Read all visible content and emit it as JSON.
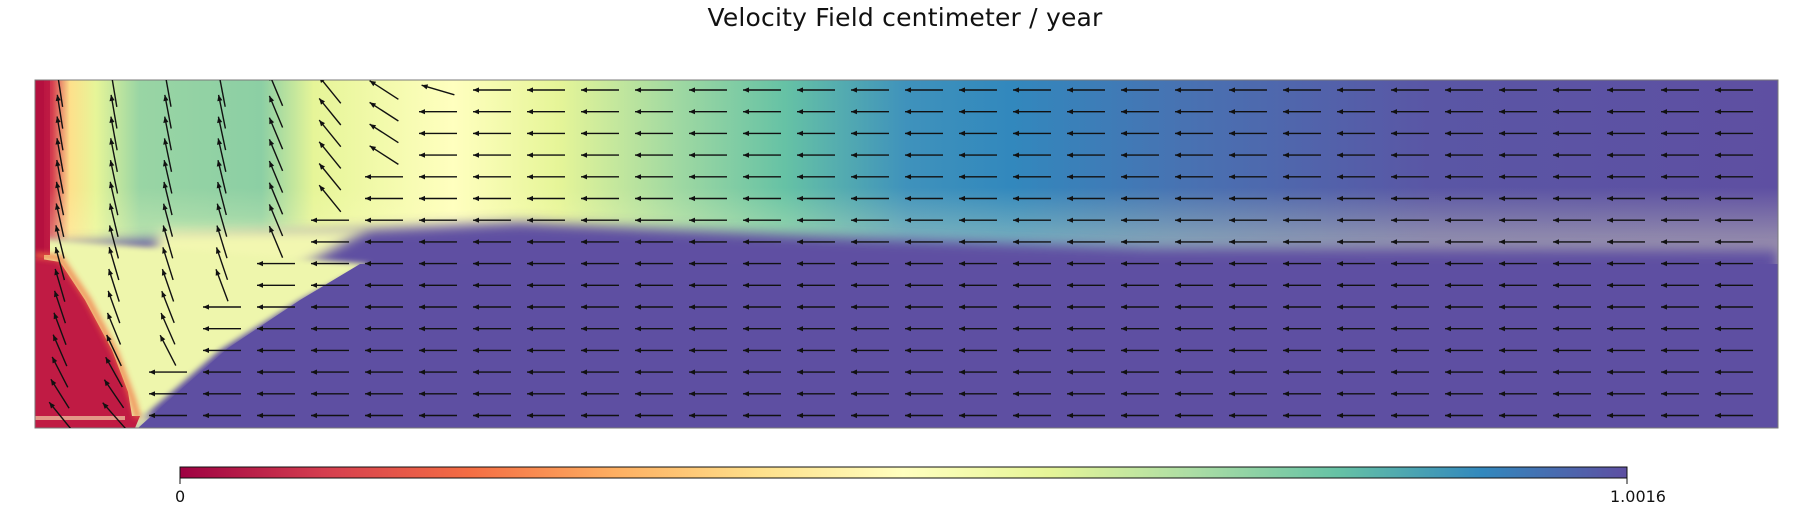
{
  "title": "Velocity Field centimeter / year",
  "colorbar": {
    "min_label": "0",
    "max_label": "1.0016",
    "min": 0,
    "max": 1.0016,
    "colormap": [
      "#9e0142",
      "#d53e4f",
      "#f46d43",
      "#fdae61",
      "#fee08b",
      "#ffffbf",
      "#e6f598",
      "#abdda4",
      "#66c2a5",
      "#3288bd",
      "#5e4fa2"
    ]
  }
}
